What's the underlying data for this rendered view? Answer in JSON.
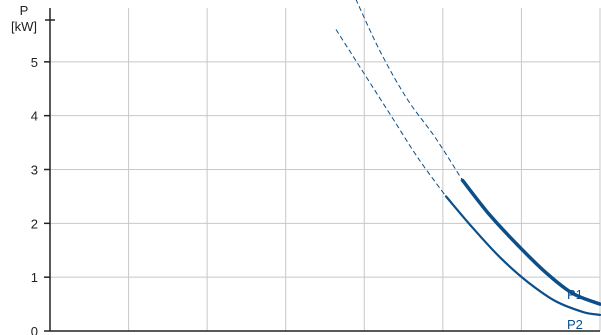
{
  "chart_data": {
    "type": "line",
    "ylabel": "P",
    "yunit": "[kW]",
    "xlabel": "",
    "ylim": [
      0,
      6
    ],
    "yticks": [
      0,
      1,
      2,
      3,
      4,
      5
    ],
    "x_gridlines": 7,
    "grid": true,
    "colors": {
      "series": "#0b4f8a",
      "grid": "#c8c8c8",
      "axis": "#222222"
    },
    "series": [
      {
        "name": "P1",
        "dashed_points": [
          [
            0.55,
            6.3
          ],
          [
            0.6,
            5.2
          ],
          [
            0.65,
            4.3
          ],
          [
            0.7,
            3.6
          ],
          [
            0.75,
            2.8
          ]
        ],
        "solid_points": [
          [
            0.75,
            2.8
          ],
          [
            0.8,
            2.15
          ],
          [
            0.85,
            1.6
          ],
          [
            0.9,
            1.1
          ],
          [
            0.95,
            0.7
          ],
          [
            1.0,
            0.5
          ]
        ],
        "weight": "bold"
      },
      {
        "name": "P2",
        "dashed_points": [
          [
            0.52,
            5.6
          ],
          [
            0.57,
            4.8
          ],
          [
            0.62,
            4.0
          ],
          [
            0.67,
            3.2
          ],
          [
            0.72,
            2.5
          ]
        ],
        "solid_points": [
          [
            0.72,
            2.5
          ],
          [
            0.77,
            1.9
          ],
          [
            0.82,
            1.35
          ],
          [
            0.87,
            0.9
          ],
          [
            0.92,
            0.55
          ],
          [
            0.97,
            0.35
          ],
          [
            1.0,
            0.3
          ]
        ],
        "weight": "normal"
      }
    ]
  }
}
